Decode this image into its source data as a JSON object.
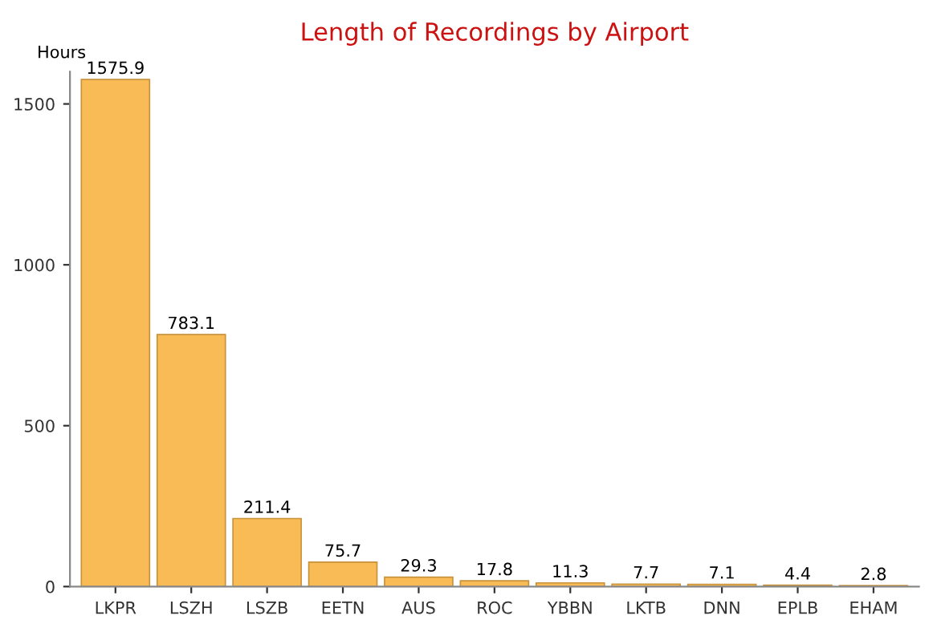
{
  "chart_data": {
    "type": "bar",
    "title": "Length of Recordings by Airport",
    "ylabel": "Hours",
    "categories": [
      "LKPR",
      "LSZH",
      "LSZB",
      "EETN",
      "AUS",
      "ROC",
      "YBBN",
      "LKTB",
      "DNN",
      "EPLB",
      "EHAM"
    ],
    "values": [
      1575.9,
      783.1,
      211.4,
      75.7,
      29.3,
      17.8,
      11.3,
      7.7,
      7.1,
      4.4,
      2.8
    ],
    "color": "#f9bb55",
    "ylim": [
      0,
      1600
    ],
    "yticks": [
      0,
      500,
      1000,
      1500
    ],
    "data_labels": true,
    "grid": false
  }
}
